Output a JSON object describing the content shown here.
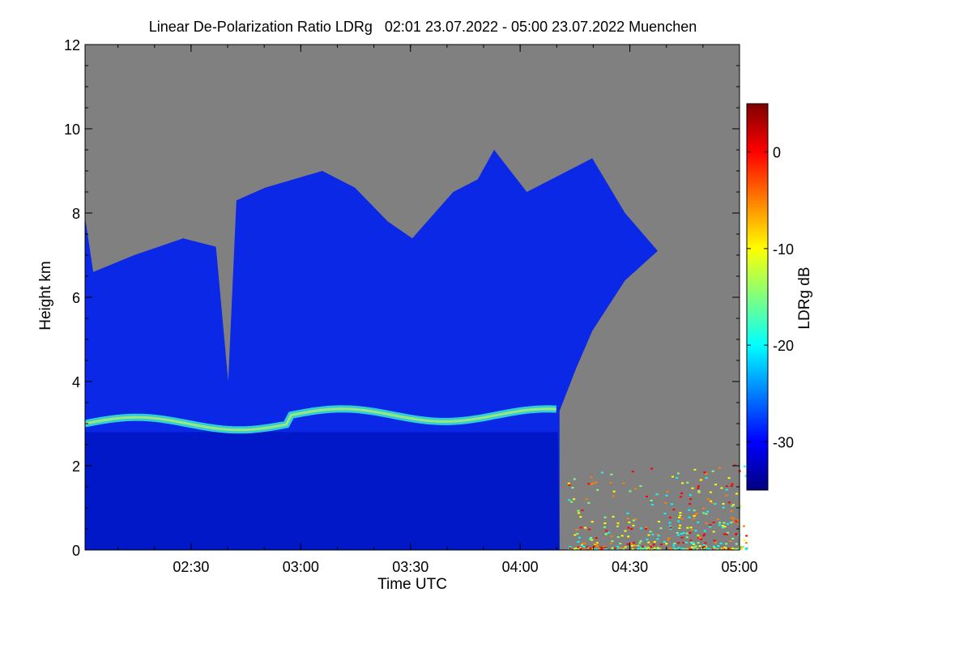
{
  "chart_data": {
    "type": "heatmap",
    "title": "Linear De-Polarization Ratio LDRg   02:01 23.07.2022 - 05:00 23.07.2022 Muenchen",
    "xlabel": "Time UTC",
    "ylabel": "Height km",
    "colorbar_label": "LDRg dB",
    "xlim": [
      "02:01",
      "05:00"
    ],
    "ylim": [
      0,
      12
    ],
    "x_ticks": [
      "02:30",
      "03:00",
      "03:30",
      "04:00",
      "04:30",
      "05:00"
    ],
    "y_ticks": [
      0,
      2,
      4,
      6,
      8,
      10,
      12
    ],
    "colorbar_range": [
      -35,
      5
    ],
    "colorbar_ticks": [
      0,
      -10,
      -20,
      -30
    ],
    "no_data_color": "#808080",
    "colormap": [
      "#00007f",
      "#0000ff",
      "#007fff",
      "#00ffff",
      "#7fff7f",
      "#ffff00",
      "#ff7f00",
      "#ff0000",
      "#7f0000"
    ],
    "features": [
      {
        "name": "cloud top envelope",
        "values_km": [
          [
            0,
            7.9
          ],
          [
            10,
            6.6
          ],
          [
            60,
            7.0
          ],
          [
            120,
            7.4
          ],
          [
            160,
            7.2
          ],
          [
            175,
            4.0
          ],
          [
            185,
            8.3
          ],
          [
            220,
            8.6
          ],
          [
            290,
            9.0
          ],
          [
            330,
            8.6
          ],
          [
            370,
            7.8
          ],
          [
            400,
            7.4
          ],
          [
            450,
            8.5
          ],
          [
            480,
            8.8
          ],
          [
            500,
            9.5
          ],
          [
            540,
            8.5
          ],
          [
            620,
            9.3
          ],
          [
            660,
            8.0
          ],
          [
            700,
            7.1
          ],
          [
            660,
            6.4
          ],
          [
            620,
            5.2
          ],
          [
            600,
            4.3
          ],
          [
            580,
            3.3
          ]
        ],
        "value_db": -32
      },
      {
        "name": "melting layer band",
        "height_km": 3.0,
        "value_db": -22
      },
      {
        "name": "near-surface noise after 04:10",
        "height_km": [
          0,
          2
        ],
        "value_db": -10
      }
    ]
  }
}
